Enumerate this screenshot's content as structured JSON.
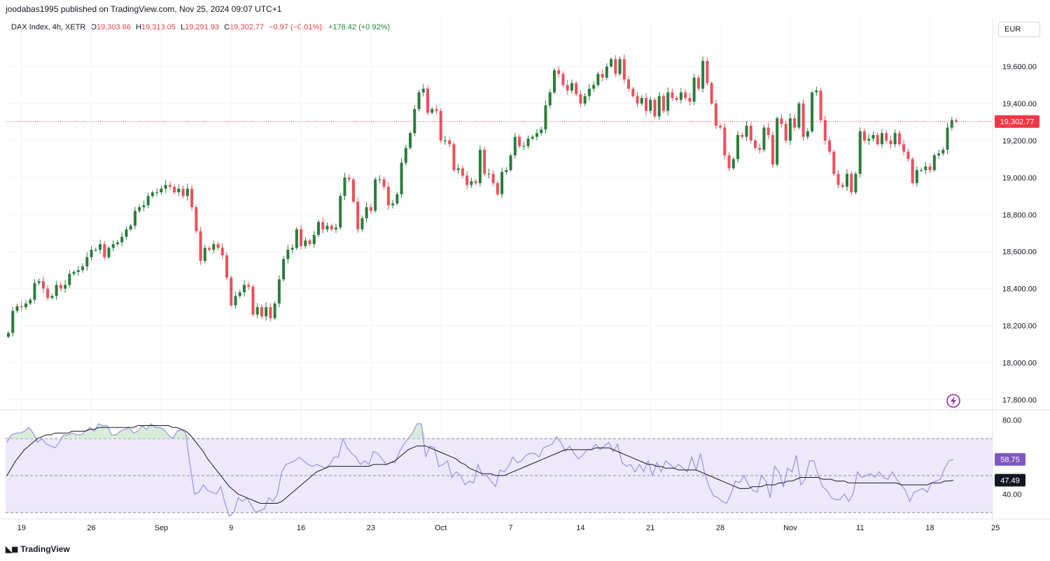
{
  "header": {
    "text": "joodabas1995 published on TradingView.com, Nov 25, 2024 09:07 UTC+1"
  },
  "legend": {
    "symbol": "DAX Index, 4h, XETR",
    "o_label": "O",
    "o_value": "19,303.66",
    "h_label": "H",
    "h_value": "19,313.05",
    "l_label": "L",
    "l_value": "19,291.93",
    "c_label": "C",
    "c_value": "19,302.77",
    "change": "−0.97 (−0.01%)",
    "change2": "+176.42 (+0.92%)"
  },
  "currency": "EUR",
  "brand": "TradingView",
  "colors": {
    "up": "#2a7d3b",
    "down": "#ef4f5c",
    "rsi": "#9c8ede",
    "rsi_ma": "#131722",
    "band": "#ede9fb",
    "price_tag": "#f23645"
  },
  "chart_data": [
    {
      "type": "candlestick",
      "title": "DAX Index, 4h, XETR",
      "y_ticks": [
        "19,600.00",
        "19,400.00",
        "19,200.00",
        "19,000.00",
        "18,800.00",
        "18,600.00",
        "18,400.00",
        "18,200.00",
        "18,000.00",
        "17,800.00"
      ],
      "y_tick_values": [
        19600,
        19400,
        19200,
        19000,
        18800,
        18600,
        18400,
        18200,
        18000,
        17800
      ],
      "ylim": [
        17760,
        19740
      ],
      "x_ticks": [
        "19",
        "26",
        "Sep",
        "9",
        "16",
        "23",
        "Oct",
        "7",
        "14",
        "21",
        "28",
        "Nov",
        "11",
        "18",
        "25"
      ],
      "x_tick_bar_index": [
        3,
        19,
        35,
        51,
        67,
        83,
        99,
        115,
        131,
        147,
        163,
        179,
        195,
        211,
        226
      ],
      "last_price_label": "19,302.77",
      "last_price": 19302.77,
      "series_close": [
        18160,
        18280,
        18305,
        18300,
        18320,
        18340,
        18430,
        18440,
        18400,
        18350,
        18360,
        18420,
        18400,
        18420,
        18480,
        18490,
        18500,
        18520,
        18570,
        18610,
        18610,
        18640,
        18570,
        18620,
        18640,
        18650,
        18680,
        18720,
        18740,
        18820,
        18840,
        18850,
        18900,
        18920,
        18920,
        18940,
        18960,
        18950,
        18920,
        18940,
        18900,
        18940,
        18840,
        18710,
        18550,
        18620,
        18610,
        18640,
        18620,
        18580,
        18460,
        18310,
        18360,
        18380,
        18420,
        18410,
        18260,
        18300,
        18250,
        18300,
        18240,
        18320,
        18450,
        18560,
        18610,
        18620,
        18720,
        18630,
        18660,
        18640,
        18690,
        18760,
        18720,
        18740,
        18720,
        18730,
        18900,
        19000,
        18990,
        18870,
        18720,
        18780,
        18840,
        18820,
        18990,
        18990,
        18950,
        18850,
        18860,
        18910,
        19080,
        19160,
        19240,
        19370,
        19460,
        19480,
        19350,
        19370,
        19360,
        19200,
        19200,
        19180,
        19040,
        19050,
        19010,
        18960,
        18980,
        18970,
        19150,
        19020,
        19020,
        18970,
        18910,
        19030,
        19040,
        19120,
        19220,
        19170,
        19170,
        19210,
        19220,
        19240,
        19260,
        19390,
        19460,
        19580,
        19560,
        19500,
        19470,
        19510,
        19450,
        19400,
        19440,
        19480,
        19500,
        19560,
        19540,
        19600,
        19640,
        19560,
        19640,
        19530,
        19480,
        19440,
        19400,
        19430,
        19360,
        19420,
        19330,
        19440,
        19360,
        19460,
        19430,
        19420,
        19460,
        19430,
        19410,
        19540,
        19480,
        19630,
        19510,
        19400,
        19280,
        19270,
        19120,
        19050,
        19100,
        19230,
        19220,
        19280,
        19200,
        19160,
        19150,
        19270,
        19230,
        19070,
        19320,
        19290,
        19200,
        19320,
        19270,
        19400,
        19220,
        19250,
        19460,
        19470,
        19310,
        19200,
        19140,
        19020,
        18960,
        18950,
        19020,
        18920,
        19020,
        19250,
        19200,
        19210,
        19230,
        19180,
        19240,
        19200,
        19180,
        19240,
        19180,
        19140,
        19100,
        18970,
        19040,
        19040,
        19060,
        19040,
        19120,
        19130,
        19150,
        19270,
        19310,
        19302.77
      ]
    },
    {
      "type": "line",
      "title": "RSI",
      "y_ticks": [
        "80.00",
        "40.00"
      ],
      "y_tick_values": [
        80,
        40
      ],
      "ylim": [
        28,
        84
      ],
      "band": [
        30,
        70
      ],
      "midline": 50,
      "rsi_label": "58.75",
      "ma_label": "47.49",
      "series": [
        {
          "values": [
            68,
            72,
            73,
            73,
            74,
            76,
            73,
            68,
            70,
            67,
            66,
            65,
            68,
            72,
            72,
            73,
            72,
            72,
            74,
            76,
            74,
            78,
            77,
            77,
            72,
            72,
            74,
            75,
            76,
            73,
            74,
            77,
            75,
            78,
            76,
            76,
            75,
            72,
            70,
            74,
            75,
            73,
            55,
            40,
            41,
            45,
            42,
            41,
            40,
            44,
            35,
            28,
            30,
            38,
            36,
            38,
            34,
            30,
            31,
            32,
            38,
            36,
            40,
            52,
            56,
            57,
            58,
            60,
            58,
            56,
            55,
            56,
            55,
            54,
            56,
            60,
            60,
            70,
            65,
            62,
            60,
            56,
            58,
            56,
            63,
            62,
            59,
            56,
            57,
            57,
            63,
            67,
            70,
            73,
            78,
            78,
            60,
            66,
            65,
            55,
            56,
            58,
            49,
            52,
            50,
            45,
            47,
            46,
            56,
            50,
            50,
            47,
            44,
            53,
            52,
            55,
            60,
            57,
            58,
            61,
            62,
            62,
            60,
            65,
            66,
            67,
            71,
            68,
            63,
            66,
            62,
            59,
            61,
            64,
            64,
            67,
            64,
            66,
            68,
            63,
            67,
            57,
            55,
            56,
            52,
            56,
            52,
            58,
            50,
            57,
            52,
            58,
            56,
            54,
            56,
            54,
            52,
            60,
            53,
            62,
            51,
            44,
            39,
            38,
            36,
            35,
            40,
            47,
            46,
            50,
            45,
            42,
            41,
            50,
            47,
            38,
            55,
            52,
            44,
            54,
            52,
            61,
            45,
            48,
            58,
            58,
            50,
            44,
            42,
            38,
            37,
            37,
            40,
            36,
            40,
            52,
            49,
            50,
            51,
            49,
            52,
            49,
            48,
            52,
            48,
            45,
            42,
            36,
            41,
            42,
            43,
            41,
            46,
            47,
            48,
            54,
            58,
            58.75
          ]
        },
        {
          "values": [
            50,
            54,
            58,
            61,
            64,
            66,
            68,
            70,
            71,
            72,
            72,
            73,
            73,
            73,
            73,
            74,
            74,
            74,
            74,
            75,
            75,
            76,
            76,
            76,
            76,
            76,
            76,
            76,
            76,
            76,
            77,
            77,
            77,
            77,
            77,
            77,
            77,
            77,
            76,
            76,
            75,
            74,
            72,
            69,
            66,
            63,
            59,
            56,
            53,
            50,
            47,
            44,
            42,
            40,
            39,
            38,
            37,
            36,
            35,
            35,
            35,
            35,
            35,
            36,
            38,
            40,
            42,
            44,
            46,
            48,
            50,
            52,
            53,
            54,
            55,
            55,
            55,
            55,
            55,
            55,
            55,
            55,
            55,
            55,
            56,
            56,
            56,
            56,
            57,
            58,
            60,
            62,
            64,
            65,
            66,
            66,
            66,
            65,
            64,
            63,
            62,
            61,
            60,
            59,
            57,
            56,
            54,
            53,
            52,
            51,
            51,
            51,
            50,
            50,
            50,
            51,
            52,
            53,
            54,
            55,
            56,
            57,
            58,
            59,
            60,
            61,
            62,
            63,
            64,
            64,
            64,
            64,
            64,
            64,
            64,
            65,
            65,
            65,
            65,
            64,
            63,
            62,
            61,
            60,
            59,
            58,
            57,
            56,
            56,
            55,
            55,
            54,
            54,
            54,
            53,
            53,
            53,
            53,
            53,
            52,
            51,
            50,
            49,
            48,
            47,
            46,
            45,
            44,
            43,
            43,
            43,
            44,
            44,
            44,
            45,
            45,
            45,
            46,
            46,
            47,
            47,
            48,
            49,
            49,
            49,
            49,
            49,
            48,
            48,
            48,
            47,
            47,
            47,
            46,
            46,
            46,
            46,
            46,
            46,
            46,
            46,
            46,
            46,
            46,
            46,
            45,
            45,
            45,
            45,
            45,
            45,
            45,
            46,
            46,
            46,
            47,
            47,
            47.49
          ]
        }
      ]
    }
  ]
}
